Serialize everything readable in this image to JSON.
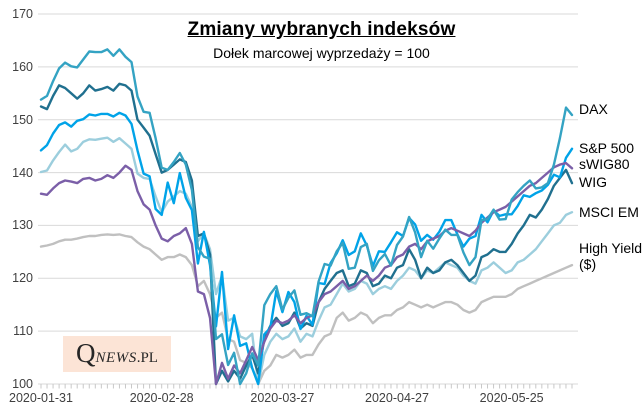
{
  "logo": {
    "q": "Q",
    "news": "NEWS",
    "pl": ".PL"
  },
  "colors": {
    "dax": "#34a3c3",
    "sp500": "#00a3e8",
    "swig80": "#7b5fa8",
    "wig": "#20708f",
    "msci_em": "#9ccedd",
    "high_yield": "#c0c0c0",
    "gridline": "#d9d9d9",
    "axis_tick": "#c8c8c8",
    "axis_text": "#404040"
  },
  "chart_data": {
    "type": "line",
    "title": "Zmiany wybranych indeksów",
    "subtitle": "Dołek marcowej wyprzedaży = 100",
    "ylim": [
      100,
      170
    ],
    "yticks": [
      100,
      110,
      120,
      130,
      140,
      150,
      160,
      170
    ],
    "grid": true,
    "legend_position": "right-end-labels",
    "x_description": "trading days from 2020-01-31 to 2020-06-08",
    "xticks": [
      {
        "label": "2020-01-31",
        "i": 0
      },
      {
        "label": "2020-02-28",
        "i": 20
      },
      {
        "label": "2020-03-27",
        "i": 40
      },
      {
        "label": "2020-04-27",
        "i": 59
      },
      {
        "label": "2020-05-25",
        "i": 78
      }
    ],
    "series": [
      {
        "name": "DAX",
        "color": "#34a3c3",
        "values": [
          153.8,
          154.5,
          157.3,
          159.7,
          160.8,
          160.1,
          159.9,
          161.4,
          162.9,
          162.8,
          162.8,
          163.3,
          162.1,
          163.3,
          161.9,
          160.9,
          154.4,
          151.5,
          151.3,
          146.5,
          140.9,
          140.5,
          142,
          143.7,
          141.5,
          136.7,
          125.9,
          124.1,
          123.7,
          108.5,
          109.4,
          103.6,
          105.9,
          100,
          102,
          105.8,
          103.5,
          114.9,
          117,
          118.5,
          114.1,
          116.3,
          117.7,
          113.1,
          113.4,
          112.8,
          119.4,
          122.7,
          122.4,
          125.1,
          126.7,
          121.8,
          122,
          125.9,
          126.5,
          121.4,
          123.4,
          124.6,
          122.4,
          126.3,
          127.9,
          131.6,
          128.7,
          124,
          127.1,
          125.6,
          127.5,
          129.2,
          128.2,
          128.2,
          124.9,
          122.5,
          124,
          131,
          131.2,
          133,
          131.1,
          131.2,
          134.9,
          136.3,
          137.5,
          138.5,
          137,
          137.2,
          138,
          141.5,
          146.5,
          152.3,
          150.9
        ]
      },
      {
        "name": "S&P 500",
        "color": "#00a3e8",
        "values": [
          144.2,
          145.2,
          147.4,
          149,
          149.5,
          148.7,
          149.8,
          150.1,
          151,
          150.8,
          151.1,
          151.1,
          150.6,
          151.3,
          150.8,
          149.2,
          144.2,
          139.8,
          139.3,
          133.1,
          132,
          138.1,
          134.2,
          139.9,
          135.2,
          132.9,
          122.8,
          128.8,
          122.5,
          110.9,
          121.2,
          106.6,
          113,
          107.2,
          107.7,
          103,
          100,
          109.4,
          110.6,
          117.6,
          113.6,
          117.4,
          115.5,
          110.4,
          112.9,
          111.2,
          119.1,
          118.9,
          122.9,
          124.7,
          127.2,
          124.4,
          125.1,
          128.5,
          126.2,
          122.3,
          125.1,
          125,
          126.8,
          128.7,
          128,
          131.4,
          130.2,
          127.1,
          128.2,
          127.3,
          128.8,
          131,
          131,
          128.3,
          126,
          127.5,
          128,
          132,
          130.6,
          132.8,
          131.8,
          132.1,
          132.1,
          133.7,
          135.7,
          135.4,
          136.1,
          136.6,
          137.7,
          139.6,
          139.1,
          142.8,
          144.5
        ]
      },
      {
        "name": "sWIG80",
        "color": "#7b5fa8",
        "values": [
          136,
          135.8,
          137,
          138,
          138.5,
          138.3,
          138,
          138.8,
          139,
          138.5,
          138.8,
          139.5,
          139,
          140,
          141.3,
          140.5,
          136.5,
          134,
          133,
          130,
          127.5,
          127,
          128,
          128.5,
          129.5,
          126.5,
          117.5,
          117,
          112.5,
          100,
          104,
          101,
          103.5,
          102,
          104.5,
          107,
          104.5,
          108,
          110.5,
          112,
          111.5,
          112,
          113,
          111.5,
          112.5,
          113,
          115.5,
          117,
          117.5,
          118.5,
          119.5,
          118,
          118.5,
          119.5,
          120.5,
          119.5,
          120.5,
          122,
          122.5,
          124,
          124.5,
          126,
          126.5,
          125.5,
          127,
          127.5,
          128,
          129,
          129.5,
          129,
          128.5,
          128,
          129,
          130.5,
          131.5,
          132.5,
          133,
          133.5,
          134.5,
          135.5,
          136.5,
          137.5,
          138,
          139,
          140,
          141,
          141.5,
          141.8,
          140.8
        ]
      },
      {
        "name": "WIG",
        "color": "#20708f",
        "values": [
          152.5,
          152,
          154.5,
          156.5,
          156,
          155,
          154,
          155,
          156.5,
          155.5,
          155.8,
          156.2,
          155.5,
          156.8,
          156.5,
          155.5,
          150,
          148.5,
          147,
          143.5,
          140,
          140.5,
          141.5,
          142.5,
          142,
          138.5,
          128,
          128.5,
          124.5,
          100,
          102.5,
          100.5,
          102.5,
          101,
          103.5,
          105.5,
          102,
          108.5,
          111,
          112.5,
          111,
          111.5,
          113.5,
          110.5,
          111.5,
          111,
          115.5,
          118,
          119.5,
          121,
          121.5,
          118.5,
          119,
          121.5,
          121,
          118.5,
          119,
          120.5,
          120,
          122,
          122.5,
          125.5,
          123.5,
          120,
          122,
          121,
          121.5,
          123,
          123.5,
          122.5,
          121,
          119.5,
          120.5,
          124,
          124.5,
          125.5,
          125,
          125,
          126.5,
          128.5,
          130,
          132,
          131.5,
          133,
          135,
          137.5,
          139,
          140.5,
          138
        ]
      },
      {
        "name": "MSCI EM",
        "color": "#9ccedd",
        "values": [
          140.1,
          140.4,
          142.3,
          143.9,
          145.3,
          144,
          144.5,
          145.8,
          146.3,
          146.2,
          146.4,
          146.6,
          145.8,
          146.5,
          145.5,
          144.5,
          139.8,
          139,
          138.8,
          135.5,
          132.5,
          134.5,
          135.5,
          136.5,
          136,
          133.5,
          127,
          128.5,
          125.5,
          117,
          120.5,
          112,
          112.5,
          109,
          108.5,
          109.5,
          100,
          105.5,
          108,
          109.5,
          108.5,
          109,
          110.5,
          108,
          109.5,
          109,
          112,
          114.5,
          115,
          117,
          119,
          117.5,
          118,
          119.5,
          119,
          117,
          118,
          118.5,
          118,
          119.5,
          120.5,
          122,
          121.5,
          120,
          121.5,
          121,
          122,
          123,
          122.5,
          122,
          120.5,
          119.5,
          119,
          121.5,
          122,
          123,
          122,
          121,
          121.5,
          123,
          123.5,
          124.5,
          125.5,
          127,
          128.5,
          130,
          130.5,
          132,
          132.5
        ]
      },
      {
        "name": "High Yield ($)",
        "color": "#c0c0c0",
        "values": [
          126,
          126.2,
          126.5,
          127,
          127.3,
          127.3,
          127.5,
          127.8,
          128,
          128,
          128.2,
          128.3,
          128.2,
          128.3,
          128,
          127.8,
          126.8,
          126,
          125.5,
          124.5,
          123.5,
          124,
          124,
          124.5,
          124,
          122.5,
          118.5,
          119.5,
          117,
          112.5,
          113.5,
          108.5,
          108,
          104.5,
          104,
          103,
          100,
          102.5,
          103.5,
          105.5,
          105,
          105.5,
          106.5,
          105,
          105.5,
          105.5,
          107.5,
          109,
          109.5,
          112.5,
          113.5,
          112,
          112.5,
          113.5,
          113,
          111.5,
          112.5,
          113,
          113,
          114,
          114.5,
          115.5,
          115,
          114.5,
          115,
          114.5,
          115,
          115.5,
          115.5,
          115,
          114,
          113.5,
          114,
          115.5,
          116,
          116.5,
          116.5,
          116.5,
          117,
          118,
          118.5,
          119,
          119.5,
          120,
          120.5,
          121,
          121.5,
          122,
          122.5
        ]
      }
    ]
  }
}
